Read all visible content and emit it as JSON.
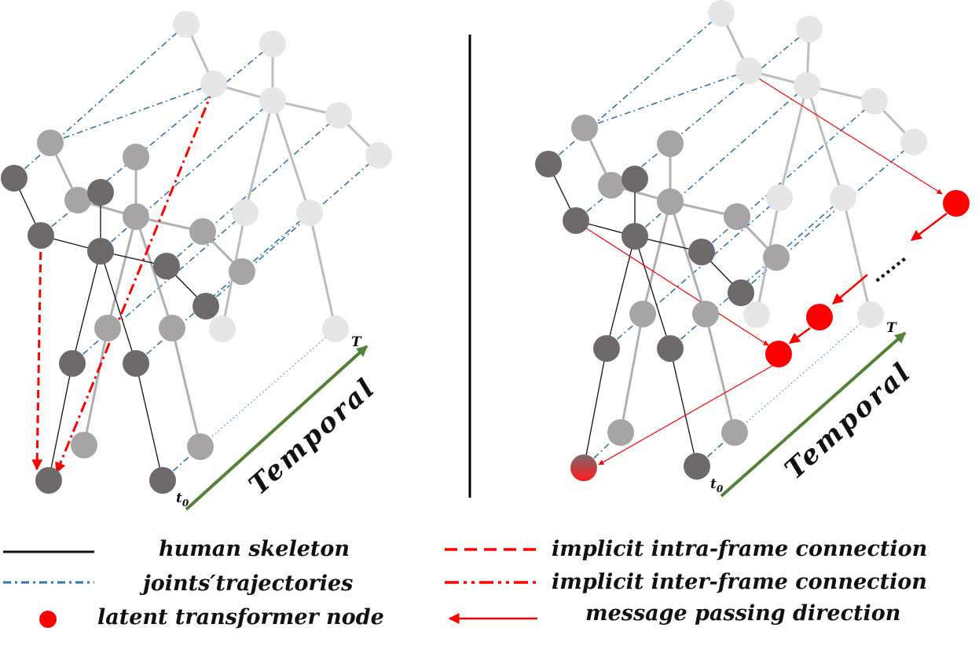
{
  "figure": {
    "left_panel": {
      "axis_label": "Temporal",
      "start_label": "t",
      "start_sub": "0",
      "end_label": "T"
    },
    "right_panel": {
      "axis_label": "Temporal",
      "start_label": "t",
      "start_sub": "0",
      "end_label": "T",
      "ellipsis": "......"
    }
  },
  "legend": {
    "human_skeleton": "human skeleton",
    "joints_trajectories": "joints′trajectories",
    "latent_node": "latent transformer node",
    "intra_frame": "implicit intra-frame connection",
    "inter_frame": "implicit inter-frame connection",
    "message_passing": "message passing direction"
  },
  "colors": {
    "skeleton": "#111111",
    "trajectory": "#2e75b6",
    "latent": "#ff0000",
    "temporal_axis": "#548235",
    "joint_dark": "#6e6a6b",
    "joint_mid": "#a6a4a5",
    "joint_light": "#e7e6e6"
  }
}
